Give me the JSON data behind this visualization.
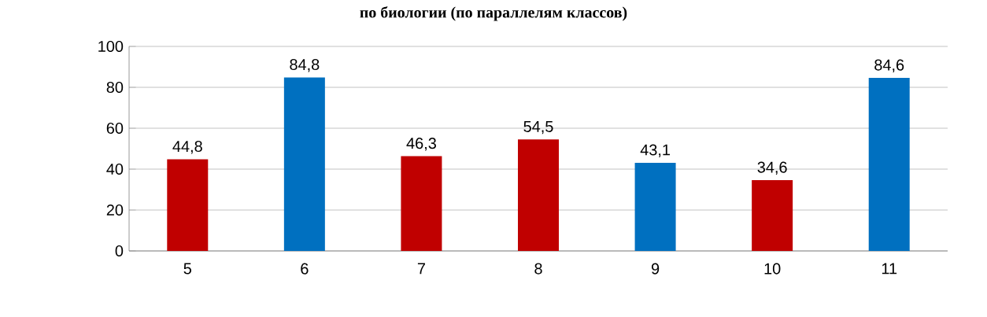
{
  "chart_data": {
    "type": "bar",
    "title": "по биологии (по параллелям классов)",
    "categories": [
      "5",
      "6",
      "7",
      "8",
      "9",
      "10",
      "11"
    ],
    "values": [
      44.8,
      84.8,
      46.3,
      54.5,
      43.1,
      34.6,
      84.6
    ],
    "value_labels": [
      "44,8",
      "84,8",
      "46,3",
      "54,5",
      "43,1",
      "34,6",
      "84,6"
    ],
    "colors": [
      "#c00000",
      "#0070c0",
      "#c00000",
      "#c00000",
      "#0070c0",
      "#c00000",
      "#0070c0"
    ],
    "ylim": [
      0,
      100
    ],
    "yticks": [
      0,
      20,
      40,
      60,
      80,
      100
    ],
    "grid": "y"
  }
}
